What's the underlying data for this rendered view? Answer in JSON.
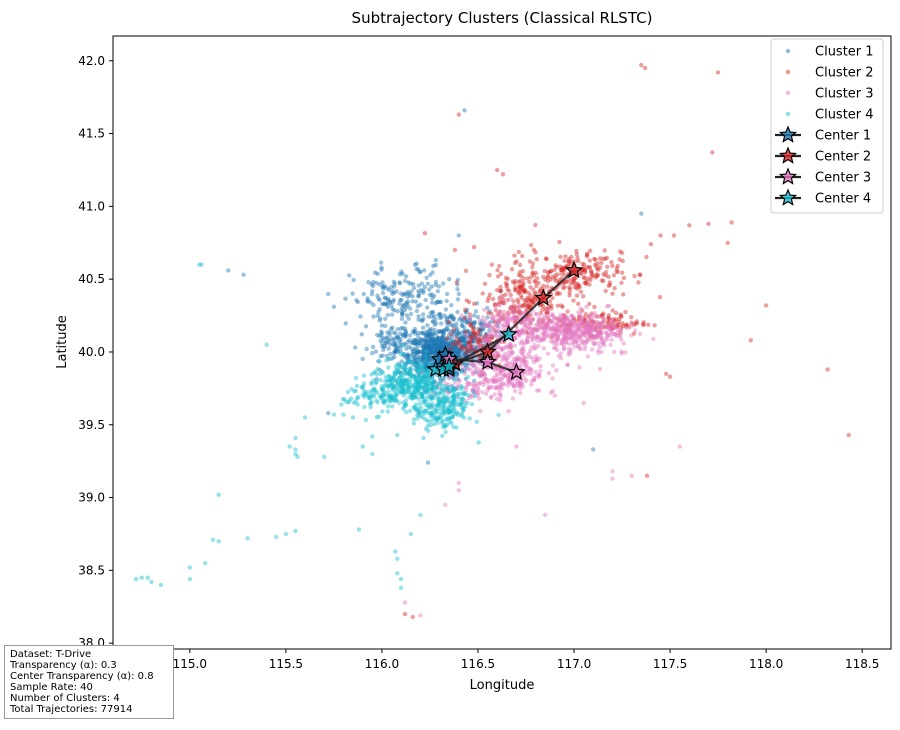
{
  "chart_data": {
    "type": "scatter",
    "title": "Subtrajectory Clusters (Classical RLSTC)",
    "xlabel": "Longitude",
    "ylabel": "Latitude",
    "xlim": [
      114.6,
      118.65
    ],
    "ylim": [
      37.96,
      42.17
    ],
    "xticks": [
      "115.0",
      "115.5",
      "116.0",
      "116.5",
      "117.0",
      "117.5",
      "118.0",
      "118.5"
    ],
    "yticks": [
      "38.0",
      "38.5",
      "39.0",
      "39.5",
      "40.0",
      "40.5",
      "41.0",
      "41.5",
      "42.0"
    ],
    "grid": false,
    "legend_position": "top-right",
    "series": [
      {
        "name": "Cluster 1",
        "color": "#1f77b4",
        "hubs": [
          [
            116.3,
            39.98,
            0.08,
            0.07,
            650
          ],
          [
            116.45,
            40.1,
            0.07,
            0.1,
            200
          ],
          [
            116.08,
            40.35,
            0.12,
            0.12,
            160
          ],
          [
            116.3,
            40.15,
            0.08,
            0.2,
            120
          ],
          [
            116.1,
            40.05,
            0.1,
            0.08,
            120
          ]
        ],
        "points": [
          [
            116.43,
            41.66
          ],
          [
            116.4,
            40.8
          ],
          [
            116.22,
            40.56
          ],
          [
            116.35,
            40.5
          ],
          [
            115.2,
            40.56
          ],
          [
            115.28,
            40.53
          ],
          [
            115.75,
            40.31
          ],
          [
            116.62,
            40.42
          ],
          [
            117.35,
            40.95
          ],
          [
            117.1,
            39.33
          ],
          [
            116.24,
            39.24
          ],
          [
            115.72,
            39.58
          ]
        ]
      },
      {
        "name": "Cluster 2",
        "color": "#d62728",
        "hubs": [
          [
            116.75,
            40.35,
            0.12,
            0.1,
            200
          ],
          [
            117.0,
            40.55,
            0.12,
            0.07,
            140
          ],
          [
            117.15,
            40.2,
            0.12,
            0.04,
            110
          ],
          [
            116.5,
            40.05,
            0.08,
            0.08,
            100
          ],
          [
            116.9,
            40.5,
            0.2,
            0.15,
            80
          ]
        ],
        "points": [
          [
            117.35,
            41.97
          ],
          [
            117.37,
            41.95
          ],
          [
            117.75,
            41.92
          ],
          [
            117.72,
            41.37
          ],
          [
            116.4,
            41.63
          ],
          [
            116.6,
            41.25
          ],
          [
            116.63,
            41.22
          ],
          [
            117.52,
            40.8
          ],
          [
            117.8,
            40.75
          ],
          [
            118.0,
            40.32
          ],
          [
            117.92,
            40.08
          ],
          [
            118.43,
            39.43
          ],
          [
            116.48,
            40.72
          ],
          [
            116.38,
            40.7
          ],
          [
            116.12,
            38.2
          ],
          [
            116.16,
            38.18
          ],
          [
            117.48,
            39.85
          ],
          [
            117.5,
            39.83
          ],
          [
            117.38,
            39.15
          ],
          [
            118.32,
            39.88
          ],
          [
            117.82,
            40.89
          ],
          [
            117.7,
            40.88
          ],
          [
            117.6,
            40.87
          ],
          [
            117.45,
            40.8
          ],
          [
            117.4,
            40.74
          ],
          [
            117.25,
            40.68
          ],
          [
            117.15,
            40.64
          ]
        ]
      },
      {
        "name": "Cluster 3",
        "color": "#e377c2",
        "hubs": [
          [
            116.95,
            40.15,
            0.14,
            0.06,
            350
          ],
          [
            116.65,
            39.9,
            0.1,
            0.1,
            300
          ],
          [
            116.65,
            40.18,
            0.08,
            0.08,
            150
          ],
          [
            116.45,
            39.75,
            0.1,
            0.05,
            80
          ],
          [
            117.1,
            40.1,
            0.1,
            0.08,
            100
          ]
        ],
        "points": [
          [
            116.4,
            39.1
          ],
          [
            116.4,
            39.05
          ],
          [
            116.33,
            38.95
          ],
          [
            116.12,
            38.28
          ],
          [
            116.85,
            38.88
          ],
          [
            116.7,
            39.35
          ],
          [
            117.2,
            39.18
          ],
          [
            117.3,
            39.15
          ],
          [
            117.2,
            39.13
          ],
          [
            117.55,
            39.35
          ],
          [
            116.2,
            38.19
          ],
          [
            116.9,
            39.7
          ],
          [
            116.88,
            39.72
          ],
          [
            117.05,
            39.65
          ]
        ]
      },
      {
        "name": "Cluster 4",
        "color": "#17becf",
        "hubs": [
          [
            116.15,
            39.78,
            0.1,
            0.08,
            350
          ],
          [
            116.35,
            39.65,
            0.06,
            0.09,
            150
          ],
          [
            115.95,
            39.7,
            0.08,
            0.06,
            80
          ],
          [
            116.25,
            39.55,
            0.06,
            0.06,
            60
          ]
        ],
        "points": [
          [
            115.05,
            40.6
          ],
          [
            115.06,
            40.6
          ],
          [
            115.4,
            40.05
          ],
          [
            114.75,
            38.45
          ],
          [
            114.78,
            38.45
          ],
          [
            114.8,
            38.42
          ],
          [
            114.85,
            38.4
          ],
          [
            114.72,
            38.44
          ],
          [
            115.0,
            38.52
          ],
          [
            115.0,
            38.44
          ],
          [
            115.08,
            38.55
          ],
          [
            115.12,
            38.71
          ],
          [
            115.15,
            38.7
          ],
          [
            115.15,
            39.02
          ],
          [
            115.3,
            38.72
          ],
          [
            115.5,
            38.75
          ],
          [
            115.55,
            38.77
          ],
          [
            115.45,
            38.73
          ],
          [
            115.52,
            39.35
          ],
          [
            115.55,
            39.33
          ],
          [
            115.55,
            39.3
          ],
          [
            115.56,
            39.28
          ],
          [
            115.7,
            39.28
          ],
          [
            115.88,
            38.78
          ],
          [
            116.07,
            38.63
          ],
          [
            116.08,
            38.58
          ],
          [
            116.08,
            38.48
          ],
          [
            116.1,
            38.44
          ],
          [
            116.1,
            38.38
          ],
          [
            116.15,
            38.75
          ],
          [
            116.2,
            38.88
          ],
          [
            116.08,
            39.43
          ],
          [
            115.95,
            39.42
          ],
          [
            115.9,
            39.35
          ],
          [
            115.95,
            39.3
          ],
          [
            115.55,
            39.41
          ],
          [
            115.6,
            39.55
          ],
          [
            115.75,
            39.57
          ],
          [
            115.8,
            39.57
          ],
          [
            115.85,
            39.55
          ]
        ]
      }
    ],
    "centers": [
      {
        "name": "Center 1",
        "color": "#1f77b4",
        "path": [
          [
            116.3,
            39.95
          ],
          [
            116.33,
            39.98
          ],
          [
            116.38,
            39.92
          ],
          [
            116.35,
            39.88
          ]
        ]
      },
      {
        "name": "Center 2",
        "color": "#d62728",
        "path": [
          [
            116.38,
            39.92
          ],
          [
            116.55,
            40.0
          ],
          [
            116.84,
            40.37
          ],
          [
            117.0,
            40.56
          ]
        ]
      },
      {
        "name": "Center 3",
        "color": "#e377c2",
        "path": [
          [
            116.35,
            39.95
          ],
          [
            116.55,
            39.93
          ],
          [
            116.7,
            39.86
          ]
        ]
      },
      {
        "name": "Center 4",
        "color": "#17becf",
        "path": [
          [
            116.28,
            39.88
          ],
          [
            116.32,
            39.88
          ],
          [
            116.35,
            39.9
          ],
          [
            116.66,
            40.12
          ]
        ]
      }
    ]
  },
  "legend": [
    {
      "label": "Cluster 1",
      "kind": "point",
      "color": "#1f77b4"
    },
    {
      "label": "Cluster 2",
      "kind": "point",
      "color": "#d62728"
    },
    {
      "label": "Cluster 3",
      "kind": "point",
      "color": "#e377c2"
    },
    {
      "label": "Cluster 4",
      "kind": "point",
      "color": "#17becf"
    },
    {
      "label": "Center 1",
      "kind": "star",
      "color": "#1f77b4"
    },
    {
      "label": "Center 2",
      "kind": "star",
      "color": "#d62728"
    },
    {
      "label": "Center 3",
      "kind": "star",
      "color": "#e377c2"
    },
    {
      "label": "Center 4",
      "kind": "star",
      "color": "#17becf"
    }
  ],
  "info": {
    "dataset": "Dataset: T-Drive",
    "transparency": "Transparency (α): 0.3",
    "center_transparency": "Center Transparency (α): 0.8",
    "sample_rate": "Sample Rate: 40",
    "num_clusters": "Number of Clusters: 4",
    "total_trajectories": "Total Trajectories: 77914"
  }
}
